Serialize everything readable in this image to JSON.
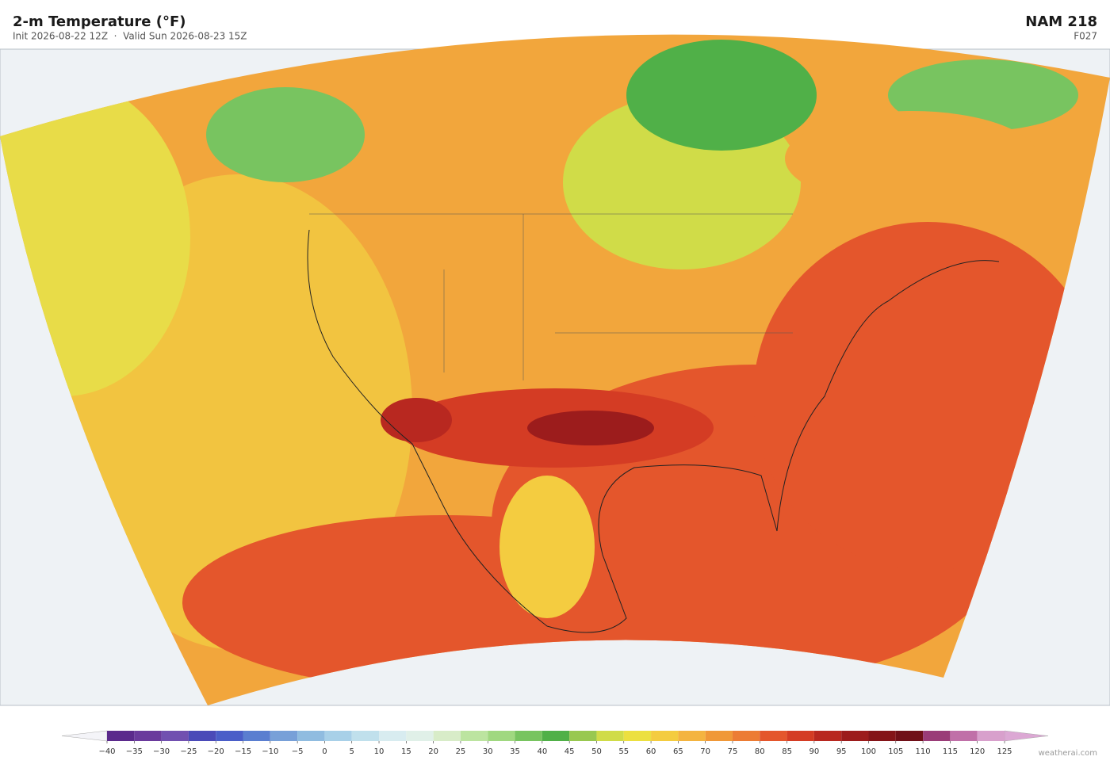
{
  "header": {
    "title": "2-m Temperature  (°F)",
    "subtitle": "Init 2026-08-22 12Z  ·  Valid Sun 2026-08-23 15Z",
    "model": "NAM  218",
    "forecast_hour": "F027"
  },
  "colorbar": {
    "ticks": [
      {
        "value": -40,
        "label": "−40"
      },
      {
        "value": -35,
        "label": "−35"
      },
      {
        "value": -30,
        "label": "−30"
      },
      {
        "value": -25,
        "label": "−25"
      },
      {
        "value": -20,
        "label": "−20"
      },
      {
        "value": -15,
        "label": "−15"
      },
      {
        "value": -10,
        "label": "−10"
      },
      {
        "value": -5,
        "label": "−5"
      },
      0,
      5,
      10,
      15,
      20,
      25,
      30,
      35,
      40,
      45,
      50,
      55,
      60,
      65,
      70,
      75,
      80,
      85,
      90,
      95,
      100,
      105,
      110,
      115,
      120,
      125
    ],
    "colors": [
      "#5b2a8c",
      "#6a3a9c",
      "#7150b0",
      "#4a4ab8",
      "#4a5ec8",
      "#5a7ed0",
      "#78a0d8",
      "#90bce0",
      "#a8d0e8",
      "#c0e0ec",
      "#d8ecf0",
      "#e0f0e8",
      "#d8ecc8",
      "#bce4a0",
      "#a0d880",
      "#78c460",
      "#50b048",
      "#98c850",
      "#d0dc48",
      "#ece040",
      "#f4cc40",
      "#f4b440",
      "#f09838",
      "#ec7c34",
      "#e4562c",
      "#d43c24",
      "#b82820",
      "#9c1c1c",
      "#841418",
      "#701018",
      "#9a3c78",
      "#c070a8",
      "#d8a0cc"
    ],
    "under_color": "#f4f4f8",
    "over_color": "#dca8d4"
  },
  "footer": {
    "credit": "weatherai.com"
  }
}
